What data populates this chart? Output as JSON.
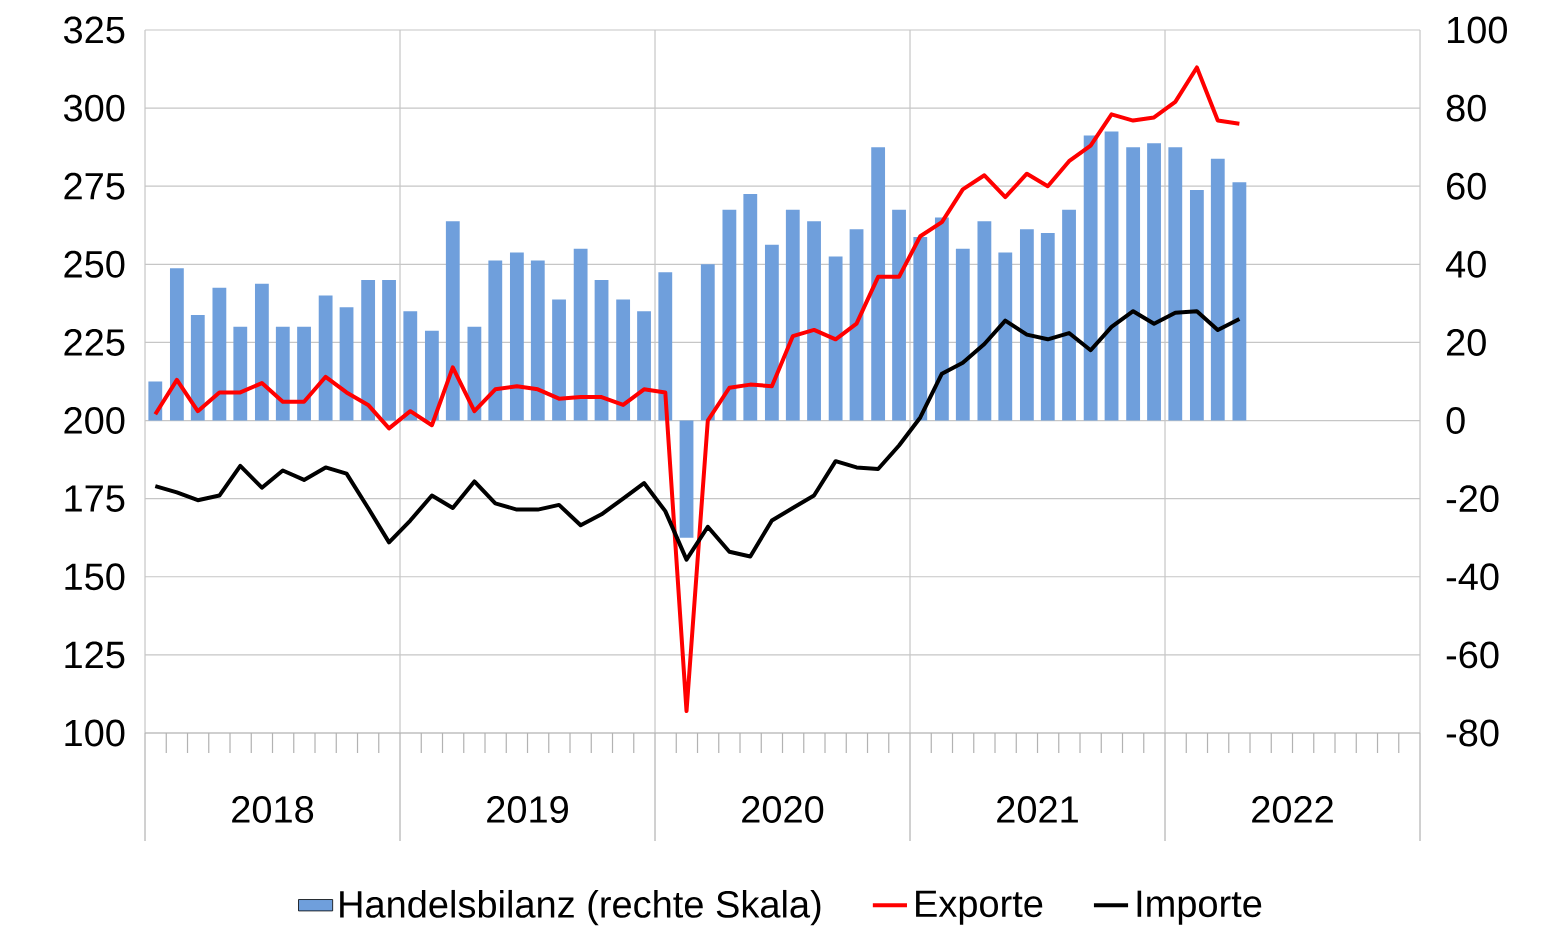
{
  "chart_data": {
    "type": "line",
    "x": [
      "2018-01-16",
      "2018-02-15",
      "2018-03-16",
      "2018-04-16",
      "2018-05-16",
      "2018-06-16",
      "2018-07-16",
      "2018-08-16",
      "2018-09-16",
      "2018-10-16",
      "2018-11-16",
      "2018-12-16",
      "2019-01-16",
      "2019-02-15",
      "2019-03-16",
      "2019-04-16",
      "2019-05-16",
      "2019-06-16",
      "2019-07-16",
      "2019-08-16",
      "2019-09-16",
      "2019-10-16",
      "2019-11-16",
      "2019-12-16",
      "2020-01-16",
      "2020-02-15",
      "2020-03-16",
      "2020-04-16",
      "2020-05-16",
      "2020-06-16",
      "2020-07-16",
      "2020-08-16",
      "2020-09-16",
      "2020-10-16",
      "2020-11-16",
      "2020-12-16",
      "2021-01-16",
      "2021-02-15",
      "2021-03-16",
      "2021-04-16",
      "2021-05-16",
      "2021-06-16",
      "2021-07-16",
      "2021-08-16",
      "2021-09-16",
      "2021-10-16",
      "2021-11-16",
      "2021-12-16",
      "2022-01-16",
      "2022-02-15",
      "2022-03-16",
      "2022-04-16"
    ],
    "series": [
      {
        "name": "Handelsbilanz (rechte Skala)",
        "type": "bar",
        "axis": "y2",
        "color": "#6f9fdc",
        "values": [
          10,
          39,
          27,
          34,
          24,
          35,
          24,
          24,
          32,
          29,
          36,
          36,
          28,
          23,
          51,
          24,
          41,
          43,
          41,
          31,
          44,
          36,
          31,
          28,
          38,
          -30,
          40,
          54,
          58,
          45,
          54,
          51,
          42,
          49,
          70,
          54,
          47,
          52,
          44,
          51,
          43,
          49,
          48,
          54,
          73,
          74,
          70,
          71,
          70,
          59,
          67,
          61
        ]
      },
      {
        "name": "Exporte",
        "color": "#ff0000",
        "values": [
          202,
          213,
          203,
          209,
          209,
          212,
          206,
          206,
          214,
          209,
          205,
          197.5,
          203,
          198.5,
          217,
          203,
          210,
          211,
          210,
          207,
          207.5,
          207.5,
          205,
          210,
          209,
          107,
          200,
          210.5,
          211.5,
          211,
          227,
          229,
          226,
          231,
          246,
          246,
          259,
          263.5,
          274,
          278.5,
          271.5,
          279,
          275,
          283,
          288,
          298,
          296,
          297,
          302,
          313,
          296,
          295
        ]
      },
      {
        "name": "Importe",
        "color": "#000000",
        "values": [
          179,
          177,
          174.5,
          176,
          185.5,
          178.5,
          184,
          181,
          185,
          183,
          172,
          161,
          168,
          176,
          172,
          180.5,
          173.5,
          171.5,
          171.5,
          173,
          166.5,
          170,
          175,
          180,
          171,
          155.5,
          166,
          158,
          156.5,
          168,
          172,
          176,
          187,
          185,
          184.5,
          192,
          201,
          215,
          218.5,
          224.5,
          232,
          227.5,
          226,
          228,
          222.5,
          230,
          235,
          231,
          234.5,
          235,
          229,
          232.5
        ]
      }
    ],
    "xlim": [
      "2018-01-01",
      "2023-01-01"
    ],
    "xticks": [
      {
        "value": "2018-01-01",
        "label": null
      },
      {
        "value": "2019-01-01",
        "label": null
      },
      {
        "value": "2020-01-01",
        "label": null
      },
      {
        "value": "2021-01-01",
        "label": null
      },
      {
        "value": "2022-01-01",
        "label": null
      },
      {
        "value": "2023-01-01",
        "label": null
      },
      {
        "value": "2018-07-01",
        "label": "2018"
      },
      {
        "value": "2019-07-01",
        "label": "2019"
      },
      {
        "value": "2020-07-01",
        "label": "2020"
      },
      {
        "value": "2021-07-01",
        "label": "2021"
      },
      {
        "value": "2022-07-01",
        "label": "2022"
      }
    ],
    "ylim": [
      100,
      325
    ],
    "yticks": [
      100,
      125,
      150,
      175,
      200,
      225,
      250,
      275,
      300,
      325
    ],
    "y2lim": [
      -80,
      100
    ],
    "y2ticks": [
      -80,
      -60,
      -40,
      -20,
      0,
      20,
      40,
      60,
      80,
      100
    ],
    "grid": true,
    "legend": "bottom"
  }
}
